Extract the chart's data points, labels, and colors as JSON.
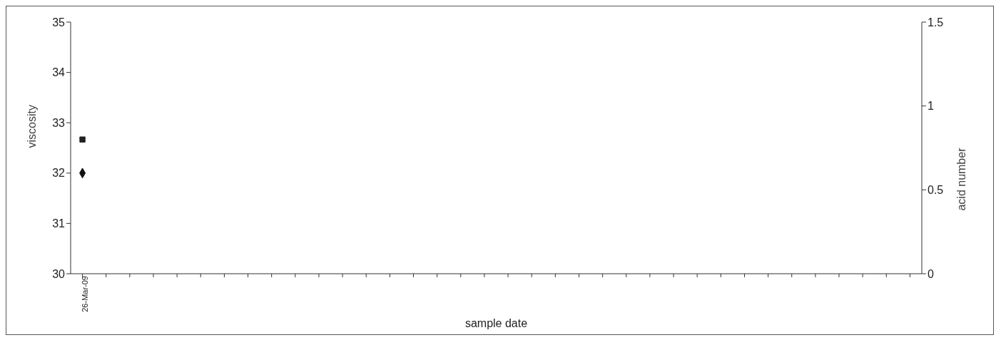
{
  "chart_data": {
    "type": "line",
    "xlabel": "sample date",
    "ylabel": "viscosity",
    "y2label": "acid number",
    "categories": [
      "26-Mar-09",
      null,
      null,
      null,
      null,
      null,
      null,
      null,
      null,
      null,
      null,
      null,
      null,
      null,
      null,
      null,
      null,
      null,
      null,
      null,
      null,
      null,
      null,
      null,
      null,
      null,
      null,
      null,
      null,
      null,
      null,
      null,
      null,
      null,
      null,
      null
    ],
    "series": [
      {
        "color": "#111111",
        "marker": "diamond",
        "values": [
          32,
          null,
          null,
          null,
          null,
          null,
          null,
          null,
          null,
          null,
          null,
          null,
          null,
          null,
          null,
          null,
          null,
          null,
          null,
          null,
          null,
          null,
          null,
          null,
          null,
          null,
          null,
          null,
          null,
          null,
          null,
          null,
          null,
          null,
          null,
          null
        ]
      },
      {
        "color": "#222222",
        "marker": "square",
        "axis": "y2",
        "values": [
          0.8,
          null,
          null,
          null,
          null,
          null,
          null,
          null,
          null,
          null,
          null,
          null,
          null,
          null,
          null,
          null,
          null,
          null,
          null,
          null,
          null,
          null,
          null,
          null,
          null,
          null,
          null,
          null,
          null,
          null,
          null,
          null,
          null,
          null,
          null,
          null
        ]
      }
    ],
    "ylim": [
      30,
      35
    ],
    "yticks": [
      30,
      31,
      32,
      33,
      34,
      35
    ],
    "y2lim": [
      0,
      1.5
    ],
    "y2ticks": [
      0,
      0.5,
      1,
      1.5
    ],
    "grid": false,
    "legend": false
  }
}
